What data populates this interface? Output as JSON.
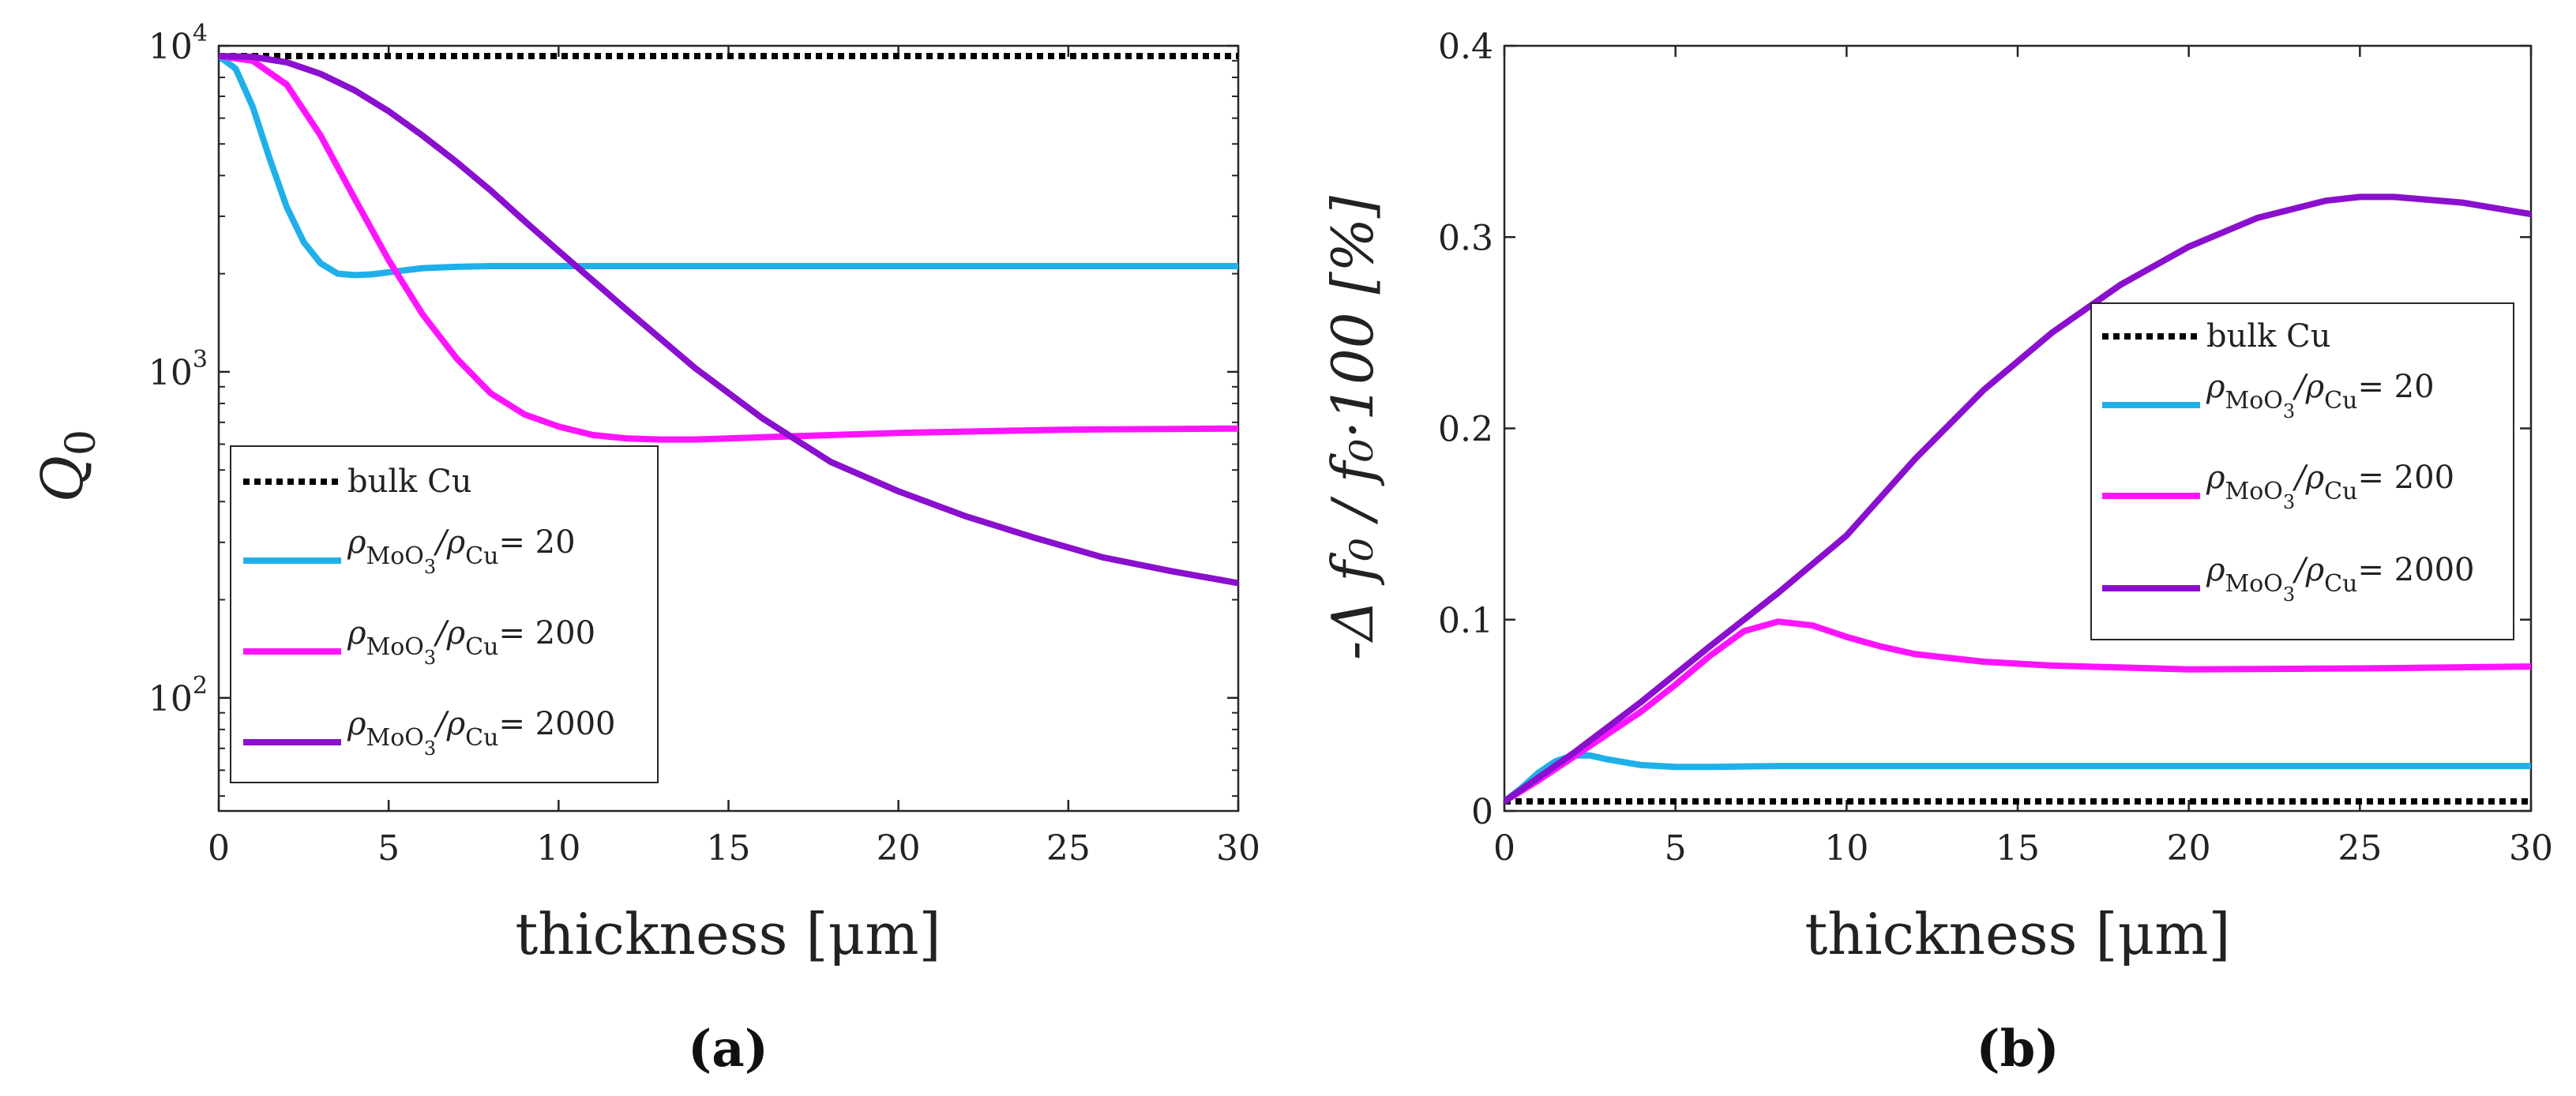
{
  "chart_data": [
    {
      "id": "a",
      "panel_label": "(a)",
      "type": "line",
      "yscale": "log",
      "xlabel": "thickness [μm]",
      "ylabel": "Q",
      "ylabel_sub": "0",
      "xlim": [
        0,
        30
      ],
      "ylim": [
        45,
        10000
      ],
      "xticks": [
        0,
        5,
        10,
        15,
        20,
        25,
        30
      ],
      "yticks": [
        {
          "value": 100,
          "base": "10",
          "exp": "2"
        },
        {
          "value": 1000,
          "base": "10",
          "exp": "3"
        },
        {
          "value": 10000,
          "base": "10",
          "exp": "4"
        }
      ],
      "legend_position": "lower-left",
      "legend": [
        {
          "text": "bulk Cu"
        },
        {
          "rho": "ρ",
          "sub1": "MoO",
          "sub2": "3",
          "slash": "/ρ",
          "sub3": "Cu",
          "value": "= 20"
        },
        {
          "rho": "ρ",
          "sub1": "MoO",
          "sub2": "3",
          "slash": "/ρ",
          "sub3": "Cu",
          "value": "= 200"
        },
        {
          "rho": "ρ",
          "sub1": "MoO",
          "sub2": "3",
          "slash": "/ρ",
          "sub3": "Cu",
          "value": "= 2000"
        }
      ],
      "series": [
        {
          "name": "bulk Cu",
          "color": "#000000",
          "style": "dotted",
          "x": [
            0,
            30
          ],
          "y": [
            9300,
            9300
          ]
        },
        {
          "name": "ρMoO3/ρCu = 20",
          "color": "#1fb0ea",
          "style": "solid",
          "x": [
            0,
            0.5,
            1,
            1.5,
            2,
            2.5,
            3,
            3.5,
            4,
            4.5,
            5,
            6,
            7,
            8,
            10,
            15,
            20,
            25,
            30
          ],
          "y": [
            9300,
            8500,
            6500,
            4500,
            3200,
            2500,
            2150,
            2000,
            1980,
            1990,
            2020,
            2080,
            2100,
            2110,
            2110,
            2110,
            2110,
            2110,
            2110
          ]
        },
        {
          "name": "ρMoO3/ρCu = 200",
          "color": "#ff14ff",
          "style": "solid",
          "x": [
            0,
            1,
            2,
            3,
            4,
            5,
            6,
            7,
            8,
            9,
            10,
            11,
            12,
            13,
            14,
            15,
            17,
            20,
            25,
            30
          ],
          "y": [
            9300,
            9000,
            7600,
            5300,
            3400,
            2200,
            1500,
            1100,
            860,
            740,
            680,
            640,
            625,
            620,
            620,
            625,
            635,
            650,
            665,
            670
          ]
        },
        {
          "name": "ρMoO3/ρCu = 2000",
          "color": "#8a0fce",
          "style": "solid",
          "x": [
            0,
            1,
            2,
            3,
            4,
            5,
            6,
            7,
            8,
            9,
            10,
            12,
            14,
            16,
            18,
            20,
            22,
            24,
            26,
            28,
            30
          ],
          "y": [
            9300,
            9250,
            8900,
            8200,
            7300,
            6300,
            5300,
            4400,
            3600,
            2900,
            2350,
            1550,
            1030,
            720,
            530,
            430,
            360,
            310,
            270,
            245,
            225
          ]
        }
      ]
    },
    {
      "id": "b",
      "panel_label": "(b)",
      "type": "line",
      "yscale": "linear",
      "xlabel": "thickness [μm]",
      "ylabel": "-Δ f₀ / f₀·100 [%]",
      "xlim": [
        0,
        30
      ],
      "ylim": [
        0,
        0.4
      ],
      "xticks": [
        0,
        5,
        10,
        15,
        20,
        25,
        30
      ],
      "yticks": [
        {
          "value": 0,
          "label": "0"
        },
        {
          "value": 0.1,
          "label": "0.1"
        },
        {
          "value": 0.2,
          "label": "0.2"
        },
        {
          "value": 0.3,
          "label": "0.3"
        },
        {
          "value": 0.4,
          "label": "0.4"
        }
      ],
      "legend_position": "center-right",
      "legend": [
        {
          "text": "bulk Cu"
        },
        {
          "rho": "ρ",
          "sub1": "MoO",
          "sub2": "3",
          "slash": "/ρ",
          "sub3": "Cu",
          "value": "= 20"
        },
        {
          "rho": "ρ",
          "sub1": "MoO",
          "sub2": "3",
          "slash": "/ρ",
          "sub3": "Cu",
          "value": "= 200"
        },
        {
          "rho": "ρ",
          "sub1": "MoO",
          "sub2": "3",
          "slash": "/ρ",
          "sub3": "Cu",
          "value": "= 2000"
        }
      ],
      "series": [
        {
          "name": "bulk Cu",
          "color": "#000000",
          "style": "dotted",
          "x": [
            0,
            30
          ],
          "y": [
            0.005,
            0.005
          ]
        },
        {
          "name": "ρMoO3/ρCu = 20",
          "color": "#1fb0ea",
          "style": "solid",
          "x": [
            0,
            0.5,
            1,
            1.5,
            2,
            2.5,
            3,
            4,
            5,
            6,
            8,
            10,
            15,
            20,
            25,
            30
          ],
          "y": [
            0.005,
            0.012,
            0.02,
            0.026,
            0.029,
            0.029,
            0.027,
            0.024,
            0.023,
            0.023,
            0.0235,
            0.0235,
            0.0235,
            0.0235,
            0.0235,
            0.0235
          ]
        },
        {
          "name": "ρMoO3/ρCu = 200",
          "color": "#ff14ff",
          "style": "solid",
          "x": [
            0,
            1,
            2,
            3,
            4,
            5,
            6,
            7,
            8,
            9,
            10,
            11,
            12,
            14,
            16,
            18,
            20,
            25,
            30
          ],
          "y": [
            0.005,
            0.016,
            0.028,
            0.04,
            0.052,
            0.066,
            0.081,
            0.094,
            0.099,
            0.097,
            0.091,
            0.086,
            0.082,
            0.078,
            0.076,
            0.075,
            0.074,
            0.0745,
            0.0755
          ]
        },
        {
          "name": "ρMoO3/ρCu = 2000",
          "color": "#8a0fce",
          "style": "solid",
          "x": [
            0,
            2,
            4,
            6,
            8,
            10,
            12,
            14,
            16,
            18,
            20,
            22,
            24,
            25,
            26,
            28,
            30
          ],
          "y": [
            0.005,
            0.03,
            0.057,
            0.086,
            0.114,
            0.144,
            0.184,
            0.22,
            0.25,
            0.275,
            0.295,
            0.31,
            0.319,
            0.321,
            0.321,
            0.318,
            0.312
          ]
        }
      ]
    }
  ]
}
